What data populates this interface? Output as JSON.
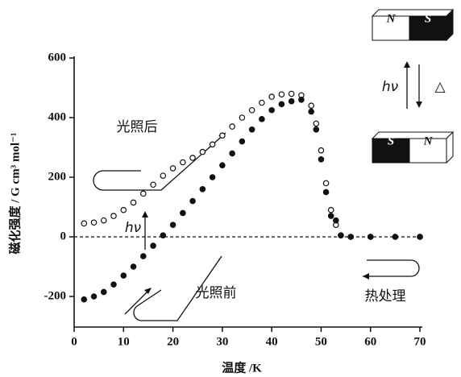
{
  "chart_data": {
    "type": "scatter",
    "x_label": "温度 /K",
    "y_label": "磁化强度 / G cm³ mol⁻¹",
    "x": [
      2,
      4,
      6,
      8,
      10,
      12,
      14,
      16,
      18,
      20,
      22,
      24,
      26,
      28,
      30,
      32,
      34,
      36,
      38,
      40,
      42,
      44,
      46,
      48,
      49,
      50,
      51,
      52,
      53,
      54,
      56,
      60,
      65,
      70
    ],
    "series": [
      {
        "marker": "open",
        "color": "#111111",
        "values": [
          45,
          48,
          55,
          70,
          90,
          115,
          145,
          175,
          205,
          230,
          250,
          265,
          285,
          310,
          340,
          370,
          400,
          425,
          450,
          470,
          478,
          480,
          475,
          440,
          380,
          290,
          180,
          90,
          40,
          5,
          0,
          0,
          0,
          0
        ]
      },
      {
        "marker": "filled",
        "color": "#111111",
        "values": [
          -210,
          -200,
          -185,
          -160,
          -130,
          -100,
          -65,
          -30,
          5,
          40,
          80,
          120,
          160,
          200,
          240,
          280,
          320,
          360,
          395,
          425,
          445,
          455,
          460,
          420,
          360,
          260,
          150,
          70,
          55,
          5,
          0,
          0,
          0,
          0
        ]
      }
    ],
    "xlim": [
      0,
      70
    ],
    "xticks": [
      0,
      10,
      20,
      30,
      40,
      50,
      60,
      70
    ],
    "ylim": [
      -300,
      600
    ],
    "yticks": [
      -200,
      0,
      200,
      400,
      600
    ],
    "reference_line": 0,
    "annotations": {
      "after": "光照后",
      "before": "光照前",
      "heat": "热处理",
      "light": "hν",
      "light_top": "hν",
      "heat_top": "△"
    },
    "magnets": {
      "top": [
        "N",
        "S"
      ],
      "bottom": [
        "S",
        "N"
      ]
    }
  }
}
